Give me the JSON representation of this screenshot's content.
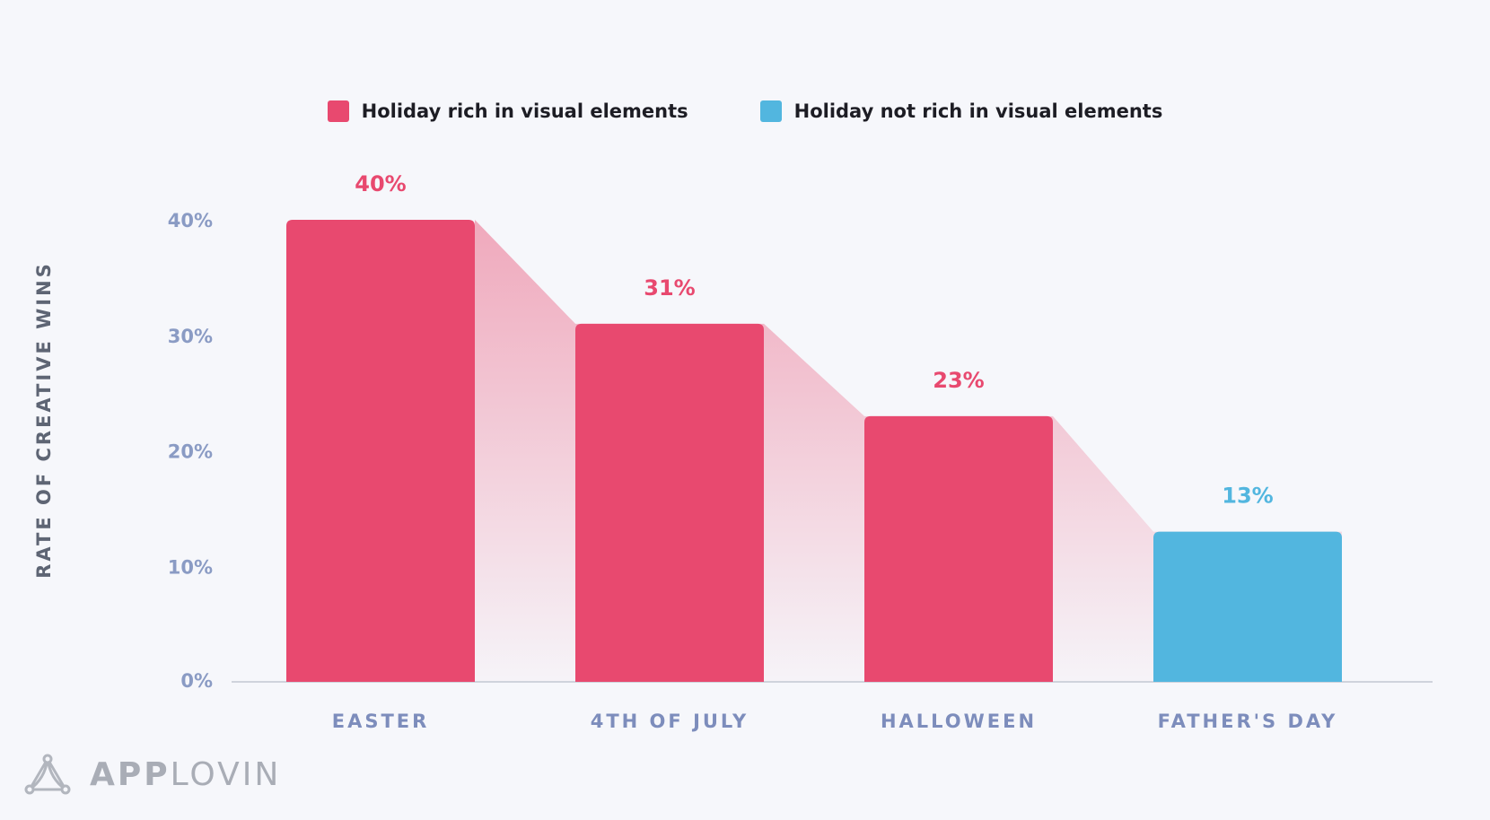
{
  "legend": {
    "rich_label": "Holiday rich in visual elements",
    "not_rich_label": "Holiday not rich in visual elements"
  },
  "colors": {
    "rich": "#e8496f",
    "not_rich": "#52b6df",
    "axis_tick": "#8a9bc4",
    "category": "#7d8dbc",
    "baseline": "#cfd3dc"
  },
  "logo": {
    "part1": "APP",
    "part2": "LOVIN",
    "icon": "applovin-logo-icon"
  },
  "chart_data": {
    "type": "bar",
    "categories": [
      "EASTER",
      "4TH OF JULY",
      "HALLOWEEN",
      "FATHER'S DAY"
    ],
    "values": [
      40,
      31,
      23,
      13
    ],
    "value_labels": [
      "40%",
      "31%",
      "23%",
      "13%"
    ],
    "groups": [
      "rich",
      "rich",
      "rich",
      "not_rich"
    ],
    "ylabel": "RATE OF CREATIVE WINS",
    "xlabel": "",
    "ylim": [
      0,
      40
    ],
    "yticks": [
      0,
      10,
      20,
      30,
      40
    ],
    "ytick_labels": [
      "0%",
      "10%",
      "20%",
      "30%",
      "40%"
    ],
    "legend_position": "top-center",
    "grid": false
  }
}
